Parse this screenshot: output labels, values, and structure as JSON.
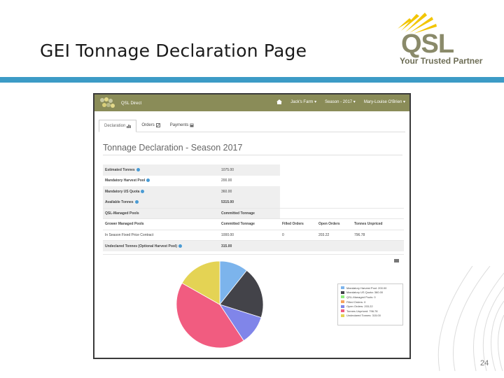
{
  "slide": {
    "title": "GEI Tonnage Declaration Page",
    "page_number": "24"
  },
  "logo": {
    "word": "QSL",
    "tagline": "Your Trusted Partner"
  },
  "nav": {
    "brand": "QSL Direct",
    "farm": "Jack's Farm",
    "season": "Season - 2017",
    "user": "Mary-Louise O'Brien"
  },
  "tabs": [
    {
      "label": "Declaration",
      "icon": "bar-chart-icon",
      "active": true
    },
    {
      "label": "Orders",
      "icon": "edit-icon",
      "active": false
    },
    {
      "label": "Payments",
      "icon": "calculator-icon",
      "active": false
    }
  ],
  "page_heading": "Tonnage Declaration - Season 2017",
  "table": {
    "rows": [
      {
        "label": "Estimated Tonnes",
        "value": "1075.00"
      },
      {
        "label": "Mandatory Harvest Pool",
        "value": "200.00"
      },
      {
        "label": "Mandatory US Quota",
        "value": "360.00"
      },
      {
        "label": "Available Tonnes",
        "value": "5315.00"
      }
    ],
    "qsl_header": {
      "label": "QSL-Managed Pools",
      "value": "Committed Tonnage"
    },
    "grower_header": {
      "label": "Grower Managed Pools",
      "committed": "Committed Tonnage",
      "filled": "Filled Orders",
      "open": "Open Orders",
      "unpriced": "Tonnes Unpriced"
    },
    "grower_row": {
      "label": "In Season Fixed Price Contract",
      "committed": "1000.00",
      "filled": "0",
      "open": "203.22",
      "unpriced": "796.78"
    },
    "undeclared": {
      "label": "Undeclared Tonnes (Optional Harvest Pool)",
      "value": "315.00"
    }
  },
  "chart_data": {
    "type": "pie",
    "series": [
      {
        "name": "Mandatory Harvest Pool: 200.00",
        "value": 200.0,
        "color": "#7cb4ec"
      },
      {
        "name": "Mandatory US Quota: 360.00",
        "value": 360.0,
        "color": "#434349"
      },
      {
        "name": "QSL-Managed Pools: 0",
        "value": 0,
        "color": "#90ed7d"
      },
      {
        "name": "Filled Orders: 0",
        "value": 0,
        "color": "#f7a35c"
      },
      {
        "name": "Open Orders: 203.22",
        "value": 203.22,
        "color": "#8085e9"
      },
      {
        "name": "Tonnes Unpriced: 796.78",
        "value": 796.78,
        "color": "#f15c80"
      },
      {
        "name": "Undeclared Tonnes: 315.00",
        "value": 315.0,
        "color": "#e4d354"
      }
    ],
    "legend_position": "bottom-right"
  },
  "colors": {
    "accent_bar": "#3c9bc6",
    "nav_bg": "#8a8c58"
  }
}
